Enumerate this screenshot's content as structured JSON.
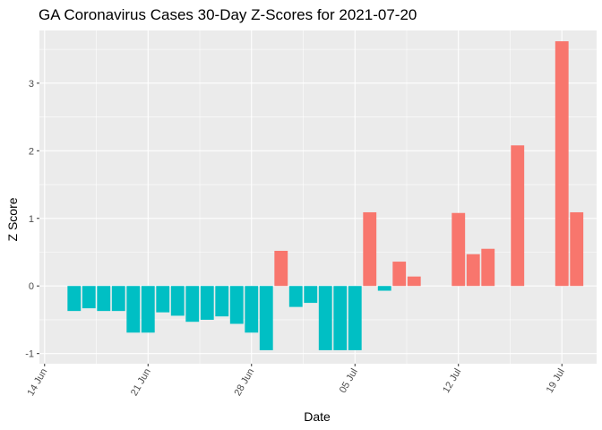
{
  "chart_data": {
    "type": "bar",
    "title": "GA Coronavirus Cases 30-Day Z-Scores for 2021-07-20",
    "xlabel": "Date",
    "ylabel": "Z Score",
    "ylim": [
      -1.15,
      3.78
    ],
    "y_ticks": [
      -1,
      0,
      1,
      2,
      3
    ],
    "x_ticks": [
      {
        "day": 0,
        "label": "14 Jun"
      },
      {
        "day": 7,
        "label": "21 Jun"
      },
      {
        "day": 14,
        "label": "28 Jun"
      },
      {
        "day": 21,
        "label": "05 Jul"
      },
      {
        "day": 28,
        "label": "12 Jul"
      },
      {
        "day": 35,
        "label": "19 Jul"
      }
    ],
    "x_range_days": [
      -0.35,
      37.35
    ],
    "positive_color": "#F8766D",
    "negative_color": "#00BFC4",
    "panel_background": "#EBEBEB",
    "grid_color": "#FFFFFF",
    "bars": [
      {
        "day": 2,
        "value": -0.37
      },
      {
        "day": 3,
        "value": -0.33
      },
      {
        "day": 4,
        "value": -0.37
      },
      {
        "day": 5,
        "value": -0.37
      },
      {
        "day": 6,
        "value": -0.69
      },
      {
        "day": 7,
        "value": -0.69
      },
      {
        "day": 8,
        "value": -0.39
      },
      {
        "day": 9,
        "value": -0.44
      },
      {
        "day": 10,
        "value": -0.53
      },
      {
        "day": 11,
        "value": -0.5
      },
      {
        "day": 12,
        "value": -0.45
      },
      {
        "day": 13,
        "value": -0.56
      },
      {
        "day": 14,
        "value": -0.69
      },
      {
        "day": 15,
        "value": -0.95
      },
      {
        "day": 16,
        "value": 0.52
      },
      {
        "day": 17,
        "value": -0.31
      },
      {
        "day": 18,
        "value": -0.25
      },
      {
        "day": 19,
        "value": -0.95
      },
      {
        "day": 20,
        "value": -0.95
      },
      {
        "day": 21,
        "value": -0.95
      },
      {
        "day": 22,
        "value": 1.09
      },
      {
        "day": 23,
        "value": -0.07
      },
      {
        "day": 24,
        "value": 0.36
      },
      {
        "day": 25,
        "value": 0.14
      },
      {
        "day": 28,
        "value": 1.08
      },
      {
        "day": 29,
        "value": 0.47
      },
      {
        "day": 30,
        "value": 0.55
      },
      {
        "day": 32,
        "value": 2.08
      },
      {
        "day": 35,
        "value": 3.62
      },
      {
        "day": 36,
        "value": 1.09
      }
    ]
  }
}
